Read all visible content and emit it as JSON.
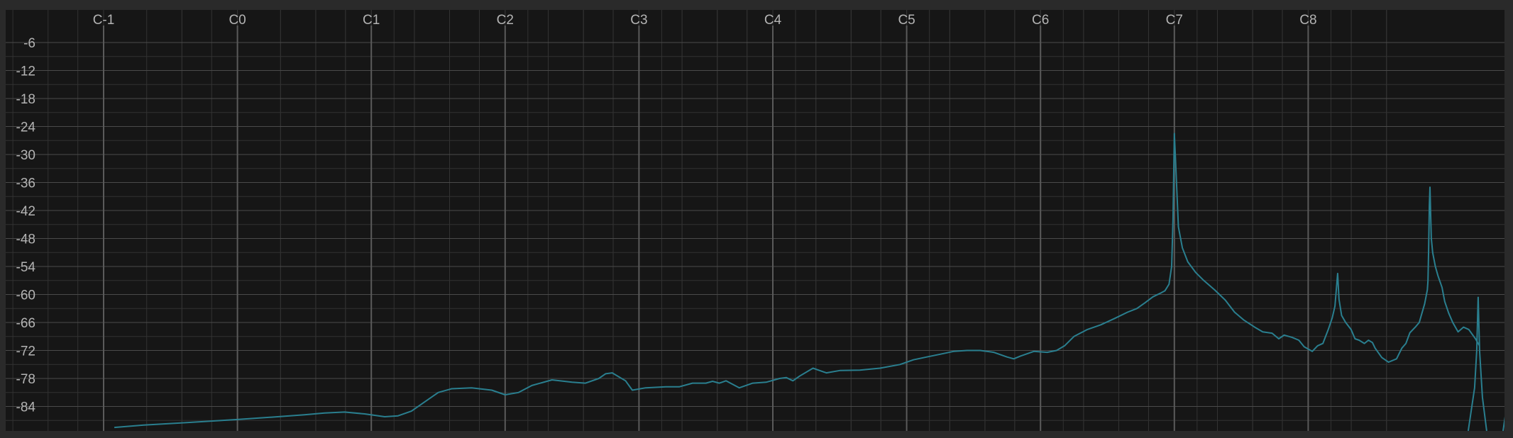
{
  "chart_data": {
    "type": "line",
    "title": "",
    "xlabel": "",
    "ylabel": "",
    "x_scale": "log",
    "xlim_octaves_from_C-1": [
      -0.05,
      10.3
    ],
    "ylim": [
      -88.5,
      -1.5
    ],
    "y_ticks": [
      -6,
      -12,
      -18,
      -24,
      -30,
      -36,
      -42,
      -48,
      -54,
      -60,
      -66,
      -72,
      -78,
      -84
    ],
    "x_ticks": [
      "C-1",
      "C0",
      "C1",
      "C2",
      "C3",
      "C4",
      "C5",
      "C6",
      "C7",
      "C8"
    ],
    "grid": true,
    "colors": {
      "background": "#161616",
      "frame": "#2a2a2a",
      "grid_major": "#4a4a4a",
      "grid_minor": "#323232",
      "octave_line": "#5a5a5a",
      "line": "#2a7f8f",
      "tick_text": "#b4b4b4"
    },
    "series": [
      {
        "x_note": "octaves above C-1",
        "points": [
          [
            0.08,
            -88.5
          ],
          [
            0.3,
            -88.0
          ],
          [
            0.6,
            -87.5
          ],
          [
            1.0,
            -86.8
          ],
          [
            1.3,
            -86.2
          ],
          [
            1.5,
            -85.8
          ],
          [
            1.65,
            -85.4
          ],
          [
            1.8,
            -85.2
          ],
          [
            1.95,
            -85.6
          ],
          [
            2.1,
            -86.2
          ],
          [
            2.2,
            -86.0
          ],
          [
            2.3,
            -85.0
          ],
          [
            2.4,
            -83.0
          ],
          [
            2.5,
            -81.0
          ],
          [
            2.6,
            -80.2
          ],
          [
            2.75,
            -80.0
          ],
          [
            2.9,
            -80.5
          ],
          [
            3.0,
            -81.5
          ],
          [
            3.1,
            -81.0
          ],
          [
            3.2,
            -79.5
          ],
          [
            3.35,
            -78.3
          ],
          [
            3.5,
            -78.8
          ],
          [
            3.6,
            -79.0
          ],
          [
            3.7,
            -78.0
          ],
          [
            3.75,
            -77.0
          ],
          [
            3.8,
            -76.8
          ],
          [
            3.9,
            -78.5
          ],
          [
            3.95,
            -80.5
          ],
          [
            4.05,
            -80.0
          ],
          [
            4.2,
            -79.8
          ],
          [
            4.3,
            -79.8
          ],
          [
            4.4,
            -79.0
          ],
          [
            4.5,
            -79.0
          ],
          [
            4.55,
            -78.6
          ],
          [
            4.6,
            -79.0
          ],
          [
            4.65,
            -78.5
          ],
          [
            4.75,
            -80.0
          ],
          [
            4.85,
            -79.0
          ],
          [
            4.95,
            -78.8
          ],
          [
            5.05,
            -78.0
          ],
          [
            5.1,
            -77.8
          ],
          [
            5.15,
            -78.5
          ],
          [
            5.2,
            -77.5
          ],
          [
            5.3,
            -75.8
          ],
          [
            5.35,
            -76.3
          ],
          [
            5.4,
            -76.8
          ],
          [
            5.5,
            -76.3
          ],
          [
            5.65,
            -76.2
          ],
          [
            5.8,
            -75.8
          ],
          [
            5.95,
            -75.0
          ],
          [
            6.05,
            -74.0
          ],
          [
            6.15,
            -73.4
          ],
          [
            6.25,
            -72.8
          ],
          [
            6.35,
            -72.2
          ],
          [
            6.45,
            -72.0
          ],
          [
            6.55,
            -72.0
          ],
          [
            6.65,
            -72.4
          ],
          [
            6.75,
            -73.4
          ],
          [
            6.8,
            -73.8
          ],
          [
            6.85,
            -73.2
          ],
          [
            6.95,
            -72.2
          ],
          [
            7.05,
            -72.4
          ],
          [
            7.12,
            -72.0
          ],
          [
            7.18,
            -71.0
          ],
          [
            7.25,
            -69.0
          ],
          [
            7.35,
            -67.5
          ],
          [
            7.45,
            -66.5
          ],
          [
            7.55,
            -65.2
          ],
          [
            7.65,
            -63.8
          ],
          [
            7.72,
            -63.0
          ],
          [
            7.78,
            -61.8
          ],
          [
            7.84,
            -60.5
          ],
          [
            7.89,
            -59.8
          ],
          [
            7.93,
            -59.2
          ],
          [
            7.96,
            -57.8
          ],
          [
            7.98,
            -54.0
          ],
          [
            7.99,
            -44.0
          ],
          [
            8.0,
            -25.5
          ],
          [
            8.01,
            -32.0
          ],
          [
            8.03,
            -45.5
          ],
          [
            8.06,
            -50.0
          ],
          [
            8.1,
            -53.0
          ],
          [
            8.16,
            -55.3
          ],
          [
            8.22,
            -57.0
          ],
          [
            8.3,
            -59.0
          ],
          [
            8.38,
            -61.2
          ],
          [
            8.45,
            -63.8
          ],
          [
            8.52,
            -65.5
          ],
          [
            8.6,
            -67.0
          ],
          [
            8.66,
            -68.0
          ],
          [
            8.73,
            -68.3
          ],
          [
            8.78,
            -69.5
          ],
          [
            8.82,
            -68.7
          ],
          [
            8.88,
            -69.2
          ],
          [
            8.93,
            -69.8
          ],
          [
            8.97,
            -71.2
          ],
          [
            9.03,
            -72.2
          ],
          [
            9.07,
            -71.0
          ],
          [
            9.11,
            -70.5
          ],
          [
            9.15,
            -67.5
          ],
          [
            9.18,
            -65.0
          ],
          [
            9.2,
            -62.5
          ],
          [
            9.21,
            -59.0
          ],
          [
            9.22,
            -55.5
          ],
          [
            9.23,
            -61.0
          ],
          [
            9.25,
            -64.5
          ],
          [
            9.28,
            -66.0
          ],
          [
            9.32,
            -67.5
          ],
          [
            9.35,
            -69.5
          ],
          [
            9.38,
            -69.8
          ],
          [
            9.42,
            -70.5
          ],
          [
            9.45,
            -69.8
          ],
          [
            9.48,
            -70.3
          ],
          [
            9.5,
            -71.5
          ],
          [
            9.55,
            -73.5
          ],
          [
            9.6,
            -74.5
          ],
          [
            9.66,
            -73.8
          ],
          [
            9.7,
            -71.5
          ],
          [
            9.73,
            -70.5
          ],
          [
            9.76,
            -68.2
          ],
          [
            9.8,
            -67.0
          ],
          [
            9.83,
            -66.0
          ],
          [
            9.85,
            -64.0
          ],
          [
            9.87,
            -62.0
          ],
          [
            9.89,
            -59.0
          ],
          [
            9.895,
            -57.0
          ],
          [
            9.9,
            -50.5
          ],
          [
            9.905,
            -41.0
          ],
          [
            9.91,
            -37.0
          ],
          [
            9.915,
            -43.0
          ],
          [
            9.92,
            -48.0
          ],
          [
            9.93,
            -51.0
          ],
          [
            9.95,
            -54.0
          ],
          [
            9.97,
            -56.0
          ],
          [
            10.0,
            -58.5
          ],
          [
            10.02,
            -61.5
          ],
          [
            10.05,
            -64.0
          ],
          [
            10.08,
            -66.0
          ],
          [
            10.12,
            -68.0
          ],
          [
            10.16,
            -67.0
          ],
          [
            10.2,
            -67.5
          ],
          [
            10.25,
            -69.5
          ],
          [
            10.28,
            -71.0
          ]
        ]
      }
    ]
  }
}
